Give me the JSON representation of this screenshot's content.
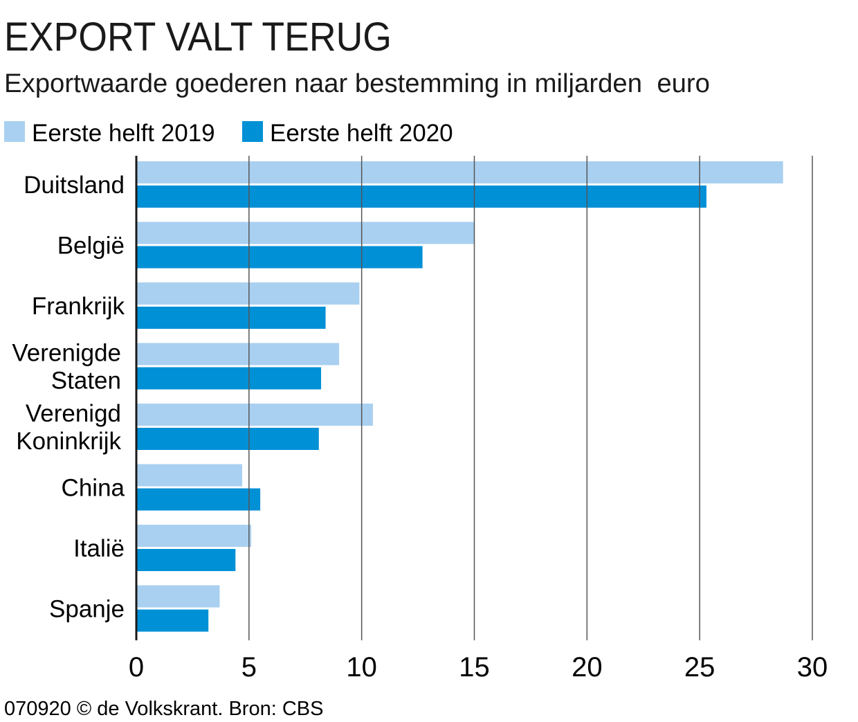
{
  "chart_data": {
    "type": "bar",
    "orientation": "horizontal",
    "title": "EXPORT VALT TERUG",
    "subtitle": "Exportwaarde goederen naar bestemming in miljarden  euro",
    "categories": [
      "Duitsland",
      "België",
      "Frankrijk",
      "Verenigde Staten",
      "Verenigd Koninkrijk",
      "China",
      "Italië",
      "Spanje"
    ],
    "series": [
      {
        "name": "Eerste helft 2019",
        "color": "#a9d0f0",
        "values": [
          28.7,
          15.0,
          9.9,
          9.0,
          10.5,
          4.7,
          5.1,
          3.7
        ]
      },
      {
        "name": "Eerste helft 2020",
        "color": "#0090d6",
        "values": [
          25.3,
          12.7,
          8.4,
          8.2,
          8.1,
          5.5,
          4.4,
          3.2
        ]
      }
    ],
    "xlim": [
      0,
      30
    ],
    "xticks": [
      "0",
      "5",
      "10",
      "15",
      "20",
      "25",
      "30"
    ],
    "grid": true,
    "legend": "top-left",
    "footer": "070920 © de Volkskrant. Bron: CBS"
  }
}
